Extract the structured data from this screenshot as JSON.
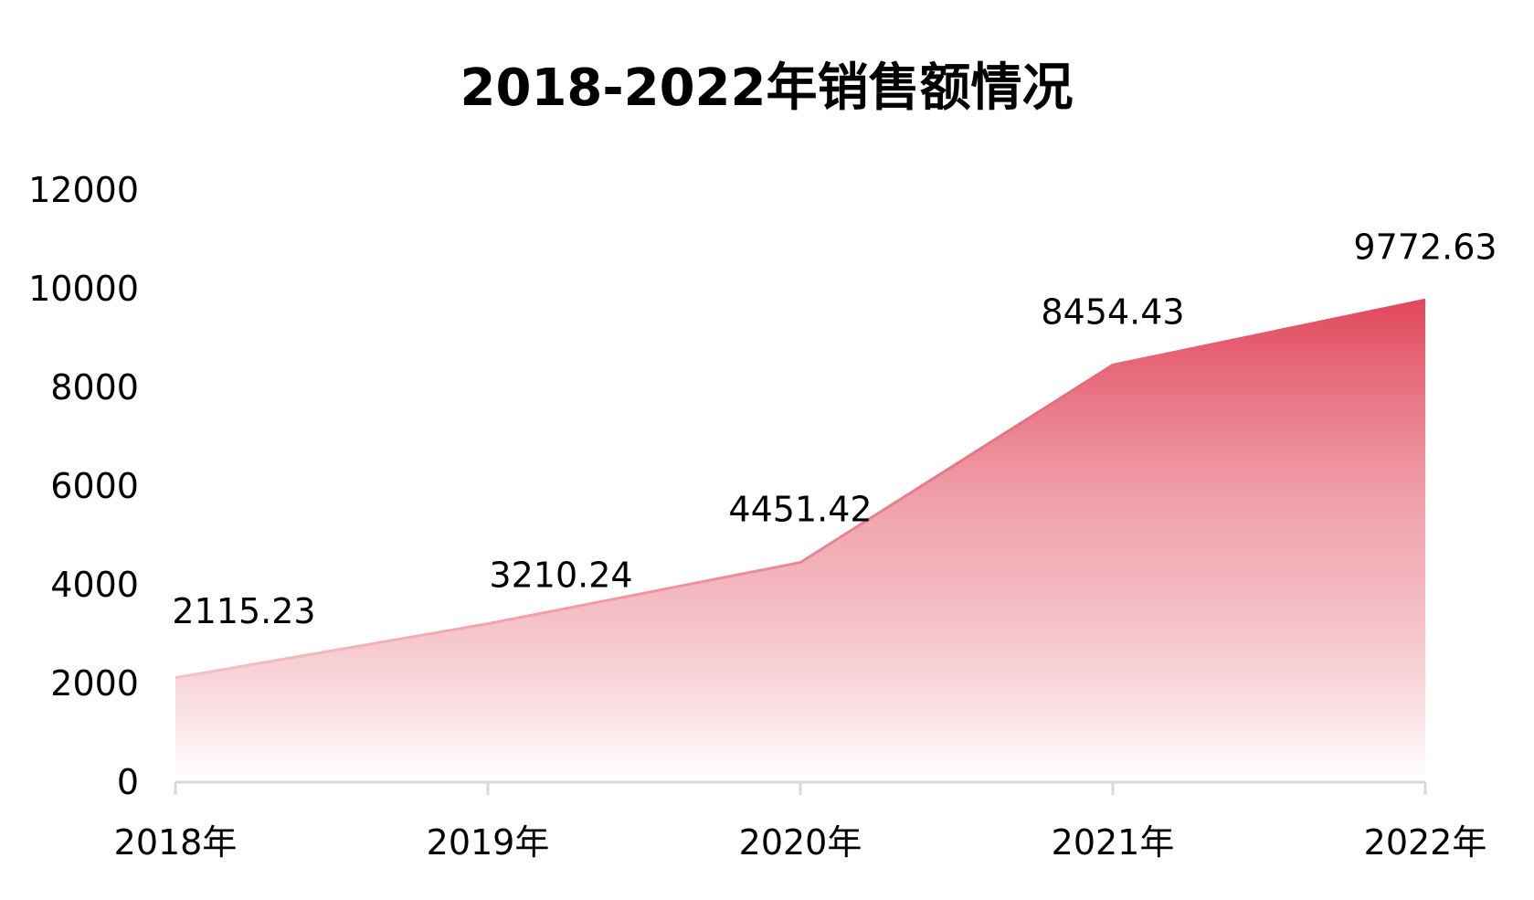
{
  "chart_data": {
    "type": "area",
    "title": "2018-2022年销售额情况",
    "xlabel": "",
    "ylabel": "",
    "categories": [
      "2018年",
      "2019年",
      "2020年",
      "2021年",
      "2022年"
    ],
    "series": [
      {
        "name": "销售额",
        "values": [
          2115.23,
          3210.24,
          4451.42,
          8454.43,
          9772.63
        ]
      }
    ],
    "data_labels": [
      "2115.23",
      "3210.24",
      "4451.42",
      "8454.43",
      "9772.63"
    ],
    "y_ticks": [
      "0",
      "2000",
      "4000",
      "6000",
      "8000",
      "10000",
      "12000"
    ],
    "ylim": [
      0,
      12000
    ],
    "grid": false,
    "legend": "none",
    "colors": {
      "fill_top": "#e2475c",
      "fill_bottom": "#ffffff",
      "line_start": "#f6c3c8",
      "line_end": "#e04a5f",
      "axis": "#d9d9d9",
      "text": "#000000"
    }
  }
}
